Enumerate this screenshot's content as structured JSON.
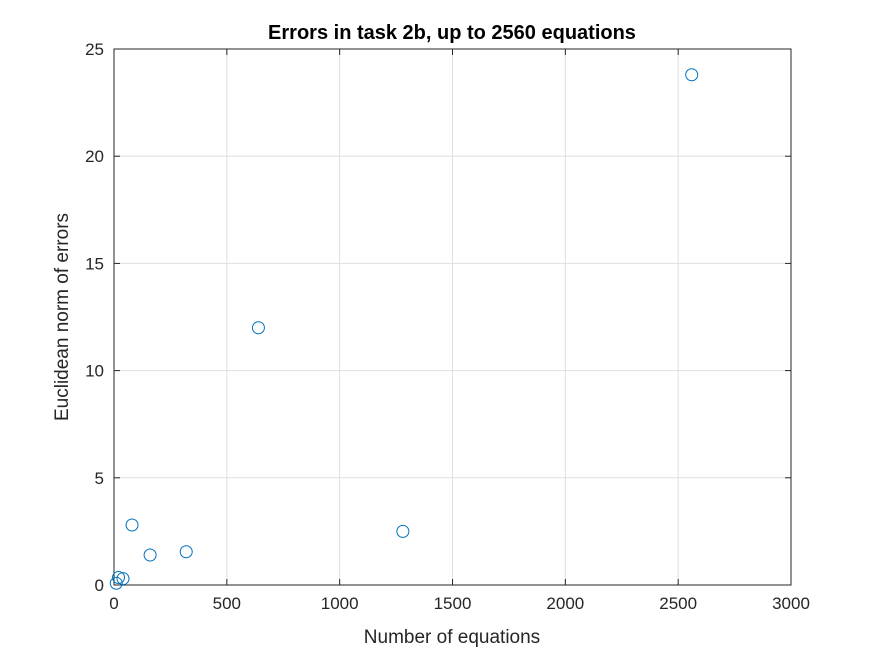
{
  "chart_data": {
    "type": "scatter",
    "title": "Errors in task 2b, up to 2560 equations",
    "xlabel": "Number of equations",
    "ylabel": "Euclidean norm of errors",
    "xlim": [
      0,
      3000
    ],
    "ylim": [
      0,
      25
    ],
    "xticks": [
      0,
      500,
      1000,
      1500,
      2000,
      2500,
      3000
    ],
    "yticks": [
      0,
      5,
      10,
      15,
      20,
      25
    ],
    "grid": true,
    "marker": "circle-open",
    "color": "#0072BD",
    "series": [
      {
        "x": [
          10,
          20,
          40,
          80,
          160,
          320,
          640,
          1280,
          2560
        ],
        "y": [
          0.08,
          0.35,
          0.3,
          2.8,
          1.4,
          1.55,
          12.0,
          2.5,
          23.8
        ]
      }
    ]
  }
}
